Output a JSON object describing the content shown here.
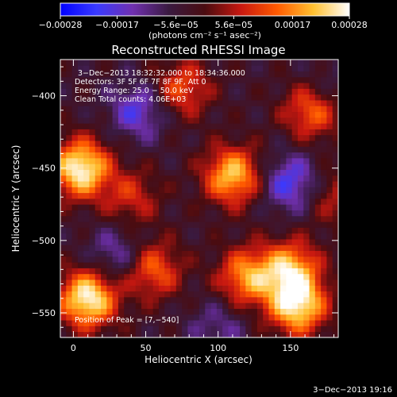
{
  "chart_data": {
    "type": "heatmap",
    "title": "Reconstructed RHESSI Image",
    "xlabel": "Heliocentric X (arcsec)",
    "ylabel": "Heliocentric Y (arcsec)",
    "xlim": [
      -9,
      183
    ],
    "ylim": [
      -567,
      -375
    ],
    "xticks": [
      0,
      50,
      100,
      150
    ],
    "yticks": [
      -400,
      -450,
      -500,
      -550
    ],
    "xtick_labels": [
      "0",
      "50",
      "100",
      "150"
    ],
    "ytick_labels": [
      "−400",
      "−450",
      "−500",
      "−550"
    ],
    "colorbar": {
      "min": -0.00028,
      "max": 0.00028,
      "ticks": [
        -0.00028,
        -0.00017,
        -5.6e-05,
        5.6e-05,
        0.00017,
        0.00028
      ],
      "tick_labels": [
        "−0.00028",
        "−0.00017",
        "−5.6e−05",
        "5.6e−05",
        "0.00017",
        "0.00028"
      ],
      "units_label": "(photons cm⁻² s⁻¹ asec⁻²)",
      "colors": [
        "#0000ff",
        "#3a3aff",
        "#7030b0",
        "#3a1a40",
        "#4a0c10",
        "#c81810",
        "#ff5a00",
        "#ffc030",
        "#ffffff"
      ]
    },
    "annotations": [
      "3−Dec−2013 18:32:32.000 to 18:34:36.000",
      "Detectors: 3F 5F 6F 7F 8F 9F, Att 0",
      "Energy Range: 25.0 − 50.0 keV",
      "Clean     Total counts: 4.06E+03"
    ],
    "peak_label": "Position of Peak = [7,−540]",
    "peak": [
      7,
      -540
    ],
    "hot_spots": [
      {
        "x": 5,
        "y": -450,
        "value": 0.00028
      },
      {
        "x": 10,
        "y": -540,
        "value": 0.00028
      },
      {
        "x": 75,
        "y": -395,
        "value": 0.00012
      },
      {
        "x": 110,
        "y": -455,
        "value": 0.00022
      },
      {
        "x": 165,
        "y": -410,
        "value": 0.00015
      },
      {
        "x": 150,
        "y": -520,
        "value": 0.0002
      },
      {
        "x": 155,
        "y": -545,
        "value": 0.00025
      },
      {
        "x": 120,
        "y": -525,
        "value": 0.00018
      },
      {
        "x": 55,
        "y": -520,
        "value": 0.00014
      },
      {
        "x": 40,
        "y": -470,
        "value": 8e-05
      },
      {
        "x": 180,
        "y": -470,
        "value": 6e-05
      }
    ],
    "cold_spots": [
      {
        "x": 45,
        "y": -410,
        "value": -0.00018
      },
      {
        "x": 150,
        "y": -460,
        "value": -0.0002
      },
      {
        "x": 30,
        "y": -510,
        "value": -0.00015
      },
      {
        "x": 100,
        "y": -560,
        "value": -0.00012
      },
      {
        "x": 175,
        "y": -395,
        "value": -0.0001
      }
    ]
  },
  "footer": {
    "timestamp": "3−Dec−2013 19:16"
  }
}
